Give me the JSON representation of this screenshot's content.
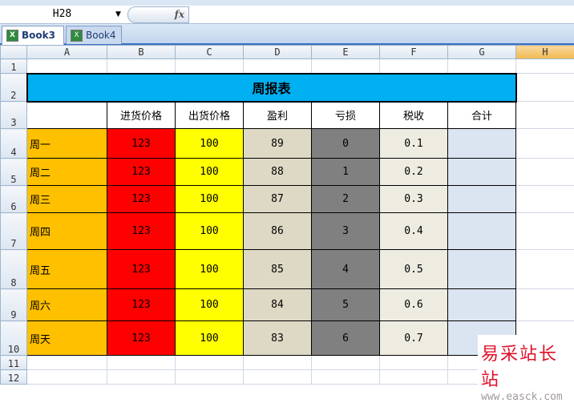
{
  "formula_bar": {
    "name_box": "H28",
    "fx_label": "fx",
    "formula": ""
  },
  "workbook_tabs": [
    {
      "label": "Book3 *",
      "active": true
    },
    {
      "label": "Book4",
      "active": false
    }
  ],
  "columns": [
    "A",
    "B",
    "C",
    "D",
    "E",
    "F",
    "G",
    "H"
  ],
  "rows": [
    "1",
    "2",
    "3",
    "4",
    "5",
    "6",
    "7",
    "8",
    "9",
    "10",
    "11",
    "12"
  ],
  "selected_column": "H",
  "sheet": {
    "title": "周报表",
    "headers": [
      "",
      "进货价格",
      "出货价格",
      "盈利",
      "亏损",
      "税收",
      "合计"
    ],
    "data": [
      [
        "周一",
        "123",
        "100",
        "89",
        "0",
        "0.1",
        ""
      ],
      [
        "周二",
        "123",
        "100",
        "88",
        "1",
        "0.2",
        ""
      ],
      [
        "周三",
        "123",
        "100",
        "87",
        "2",
        "0.3",
        ""
      ],
      [
        "周四",
        "123",
        "100",
        "86",
        "3",
        "0.4",
        ""
      ],
      [
        "周五",
        "123",
        "100",
        "85",
        "4",
        "0.5",
        ""
      ],
      [
        "周六",
        "123",
        "100",
        "84",
        "5",
        "0.6",
        ""
      ],
      [
        "周天",
        "123",
        "100",
        "83",
        "6",
        "0.7",
        ""
      ]
    ]
  },
  "colors": {
    "title_bg": "#00b0f0",
    "day_bg": "#ffc000",
    "buy_bg": "#ff0000",
    "sell_bg": "#ffff00",
    "profit_bg": "#ddd9c4",
    "loss_bg": "#808080",
    "tax_bg": "#eeece1",
    "total_bg": "#dbe5f1"
  },
  "watermark": {
    "cn": "易采站长站",
    "url": "www.easck.com"
  }
}
